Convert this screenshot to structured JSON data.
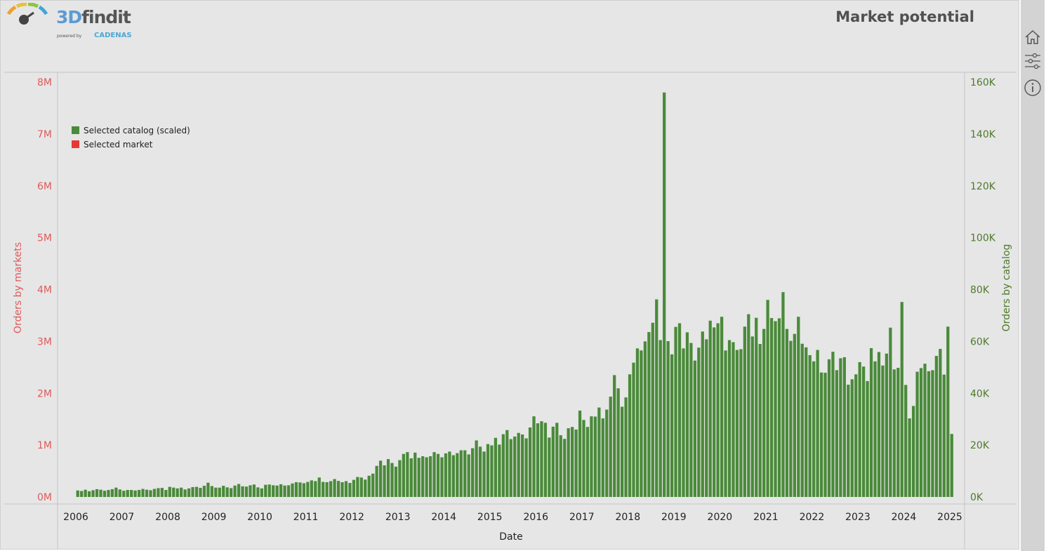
{
  "header": {
    "brand_3d": "3D",
    "brand_rest": "findit",
    "powered_by": "powered by",
    "cadenas": "CADENAS",
    "title": "Market potential"
  },
  "sidebar": {
    "icons": [
      "home-icon",
      "filter-sliders-icon",
      "info-icon"
    ]
  },
  "colors": {
    "market": "#e53935",
    "catalog": "#4a8a3a",
    "catalog_dark": "#3d5f1c",
    "left_axis": "#e05a5a",
    "right_axis": "#4d7a2a"
  },
  "chart_data": {
    "type": "bar",
    "xlabel": "Date",
    "ylabel_left": "Orders by markets",
    "ylabel_right": "Orders by catalog",
    "x_ticks": [
      "2006",
      "2007",
      "2008",
      "2009",
      "2010",
      "2011",
      "2012",
      "2013",
      "2014",
      "2015",
      "2016",
      "2017",
      "2018",
      "2019",
      "2020",
      "2021",
      "2022",
      "2023",
      "2024",
      "2025"
    ],
    "y_left_ticks": [
      "0M",
      "1M",
      "2M",
      "3M",
      "4M",
      "5M",
      "6M",
      "7M",
      "8M"
    ],
    "y_right_ticks": [
      "0K",
      "20K",
      "40K",
      "60K",
      "80K",
      "100K",
      "120K",
      "140K",
      "160K"
    ],
    "ylim_left": [
      0,
      8000000
    ],
    "ylim_right": [
      0,
      160000
    ],
    "xlim": [
      "2006-01",
      "2025-01"
    ],
    "legend": {
      "placement": "top-left",
      "entries": [
        "Selected catalog (scaled)",
        "Selected market"
      ]
    },
    "bar_period": "month",
    "first_month": "2006-01",
    "series": [
      {
        "name": "Selected catalog (scaled)",
        "unit": "orders by catalog",
        "values": [
          2500,
          2300,
          2800,
          2200,
          2600,
          3000,
          2800,
          2400,
          2700,
          3000,
          3600,
          2900,
          2400,
          2700,
          2700,
          2500,
          2700,
          3100,
          2800,
          2600,
          3100,
          3400,
          3500,
          2700,
          3900,
          3600,
          3300,
          3600,
          2900,
          3300,
          3800,
          3900,
          3500,
          4300,
          5500,
          4200,
          3600,
          3600,
          4300,
          3700,
          3400,
          4400,
          5000,
          4100,
          4000,
          4500,
          4800,
          3700,
          3300,
          4700,
          4800,
          4500,
          4400,
          4900,
          4400,
          4500,
          5200,
          5700,
          5600,
          5300,
          5800,
          6400,
          6100,
          7500,
          5800,
          5700,
          6100,
          6900,
          6200,
          5700,
          6100,
          5400,
          6600,
          7700,
          7500,
          6700,
          8200,
          9000,
          12000,
          14000,
          12200,
          14600,
          13100,
          11700,
          14200,
          16600,
          17300,
          14900,
          17100,
          15100,
          15700,
          15300,
          15700,
          17300,
          16600,
          15300,
          16800,
          17500,
          16100,
          16900,
          18000,
          18000,
          16400,
          18800,
          21800,
          19400,
          17500,
          20400,
          19900,
          22800,
          20200,
          24200,
          25800,
          22300,
          23300,
          24700,
          24100,
          22600,
          26800,
          31100,
          28400,
          29200,
          28600,
          22900,
          27100,
          28600,
          23800,
          22400,
          26500,
          27000,
          26000,
          33300,
          29700,
          27000,
          31100,
          31000,
          34500,
          30300,
          33700,
          38700,
          47000,
          41900,
          34800,
          38400,
          47300,
          51800,
          57300,
          56500,
          60000,
          63600,
          67200,
          76200,
          60500,
          156000,
          60100,
          55000,
          65600,
          67000,
          57300,
          63500,
          59400,
          52600,
          57600,
          63800,
          60800,
          68000,
          65400,
          67000,
          69500,
          56500,
          60500,
          59700,
          56700,
          57000,
          65700,
          70500,
          61900,
          69100,
          59000,
          64800,
          76000,
          69000,
          67800,
          68900,
          79000,
          64800,
          60200,
          62900,
          69500,
          59100,
          57700,
          54700,
          52300,
          56700,
          48000,
          47900,
          53100,
          56000,
          48900,
          53500,
          53900,
          43300,
          45400,
          47300,
          52000,
          50300,
          44700,
          57400,
          52300,
          55900,
          50700,
          55300,
          65300,
          49200,
          49800,
          75200,
          43200,
          30300,
          35100,
          48300,
          49700,
          51400,
          48500,
          48900,
          54400,
          57100,
          47200,
          65700,
          24300
        ]
      },
      {
        "name": "Selected market",
        "unit": "orders by markets",
        "values": [
          0,
          0,
          0,
          0,
          0,
          0,
          0,
          0,
          0,
          0,
          0,
          0,
          0,
          0,
          0,
          0,
          0,
          0,
          0,
          0,
          0,
          0,
          0,
          0,
          0,
          0,
          0,
          0,
          0,
          0,
          0,
          0,
          0,
          0,
          0,
          0,
          0,
          0,
          0,
          0,
          0,
          0,
          0,
          0,
          0,
          0,
          0,
          0,
          0,
          0,
          0,
          0,
          0,
          0,
          0,
          0,
          0,
          0,
          0,
          0,
          0,
          0,
          0,
          0,
          0,
          0,
          0,
          0,
          0,
          0,
          0,
          0,
          0,
          0,
          0,
          0,
          0,
          0,
          0,
          0,
          0,
          0,
          0,
          0,
          0,
          0,
          0,
          0,
          0,
          0,
          0,
          0,
          0,
          0,
          0,
          0,
          0,
          0,
          0,
          0,
          0,
          0,
          0,
          0,
          0,
          0,
          0,
          0,
          0,
          0,
          0,
          0,
          0,
          0,
          0,
          0,
          0,
          0,
          0,
          0,
          0,
          0,
          0,
          0,
          0,
          0,
          0,
          0,
          0,
          0,
          0,
          0,
          0,
          0,
          0,
          0,
          0,
          0,
          0,
          0,
          0,
          0,
          0,
          0,
          0,
          0,
          0,
          0,
          0,
          0,
          0,
          0,
          0,
          0,
          0,
          0,
          0,
          0,
          0,
          0,
          0,
          0,
          0,
          0,
          0,
          0,
          0,
          0,
          0,
          0,
          0,
          0,
          0,
          0,
          0,
          0,
          0,
          0,
          0,
          0,
          0,
          0,
          0,
          0,
          0,
          0,
          0,
          0,
          0,
          0,
          0,
          0,
          0,
          0,
          0,
          0,
          0,
          0,
          0,
          0,
          0,
          0,
          0,
          0,
          0,
          0,
          0,
          0,
          0,
          0,
          0,
          0,
          0,
          0,
          0,
          0,
          0,
          0,
          0,
          0,
          0,
          0,
          0,
          0,
          0,
          0,
          0,
          0,
          0,
          0,
          0,
          0,
          0,
          0,
          0,
          0,
          0,
          0,
          0,
          0,
          0,
          0,
          0,
          0,
          0,
          0,
          0,
          0,
          0,
          0,
          0,
          0,
          0,
          0,
          0,
          0,
          0,
          0
        ]
      }
    ]
  }
}
